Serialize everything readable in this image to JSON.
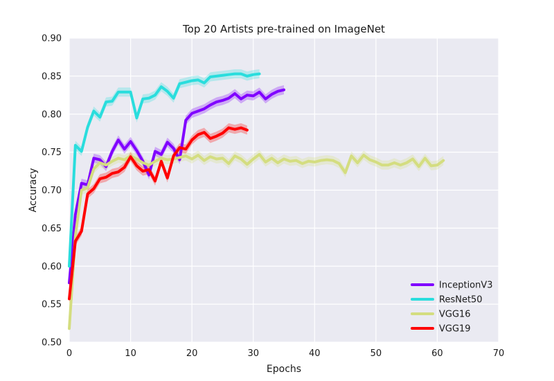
{
  "chart_data": {
    "type": "line",
    "title": "Top 20 Artists pre-trained on ImageNet",
    "xlabel": "Epochs",
    "ylabel": "Accuracy",
    "xlim": [
      0,
      70
    ],
    "ylim": [
      0.5,
      0.9
    ],
    "x_ticks": [
      "0",
      "10",
      "20",
      "30",
      "40",
      "50",
      "60",
      "70"
    ],
    "y_ticks": [
      "0.50",
      "0.55",
      "0.60",
      "0.65",
      "0.70",
      "0.75",
      "0.80",
      "0.85",
      "0.90"
    ],
    "grid": true,
    "legend_position": "bottom-right",
    "series": [
      {
        "name": "InceptionV3",
        "color": "#8000ff",
        "band": 0.006,
        "x": [
          0,
          1,
          2,
          3,
          4,
          5,
          6,
          7,
          8,
          9,
          10,
          11,
          12,
          13,
          14,
          15,
          16,
          17,
          18,
          19,
          20,
          21,
          22,
          23,
          24,
          25,
          26,
          27,
          28,
          29,
          30,
          31,
          32,
          33,
          34,
          35
        ],
        "values": [
          0.578,
          0.668,
          0.709,
          0.707,
          0.742,
          0.74,
          0.731,
          0.751,
          0.766,
          0.754,
          0.764,
          0.752,
          0.738,
          0.72,
          0.751,
          0.747,
          0.763,
          0.755,
          0.74,
          0.792,
          0.801,
          0.804,
          0.807,
          0.812,
          0.816,
          0.818,
          0.821,
          0.827,
          0.82,
          0.825,
          0.824,
          0.829,
          0.82,
          0.826,
          0.83,
          0.832
        ]
      },
      {
        "name": "ResNet50",
        "color": "#2adddd",
        "band": 0.006,
        "x": [
          0,
          1,
          2,
          3,
          4,
          5,
          6,
          7,
          8,
          9,
          10,
          11,
          12,
          13,
          14,
          15,
          16,
          17,
          18,
          19,
          20,
          21,
          22,
          23,
          24,
          25,
          26,
          27,
          28,
          29,
          30,
          31
        ],
        "values": [
          0.6,
          0.759,
          0.751,
          0.783,
          0.804,
          0.796,
          0.816,
          0.817,
          0.829,
          0.829,
          0.829,
          0.795,
          0.82,
          0.821,
          0.825,
          0.836,
          0.83,
          0.821,
          0.84,
          0.842,
          0.844,
          0.845,
          0.841,
          0.849,
          0.85,
          0.851,
          0.852,
          0.853,
          0.853,
          0.85,
          0.852,
          0.853
        ]
      },
      {
        "name": "VGG16",
        "color": "#d4dd80",
        "band": 0.006,
        "x": [
          0,
          1,
          2,
          3,
          4,
          5,
          6,
          7,
          8,
          9,
          10,
          11,
          12,
          13,
          14,
          15,
          16,
          17,
          18,
          19,
          20,
          21,
          22,
          23,
          24,
          25,
          26,
          27,
          28,
          29,
          30,
          31,
          32,
          33,
          34,
          35,
          36,
          37,
          38,
          39,
          40,
          41,
          42,
          43,
          44,
          45,
          46,
          47,
          48,
          49,
          50,
          51,
          52,
          53,
          54,
          55,
          56,
          57,
          58,
          59,
          60,
          61
        ],
        "values": [
          0.518,
          0.64,
          0.7,
          0.703,
          0.728,
          0.736,
          0.733,
          0.738,
          0.742,
          0.74,
          0.745,
          0.741,
          0.736,
          0.733,
          0.738,
          0.742,
          0.74,
          0.741,
          0.743,
          0.745,
          0.741,
          0.746,
          0.739,
          0.744,
          0.741,
          0.742,
          0.735,
          0.745,
          0.741,
          0.734,
          0.741,
          0.747,
          0.737,
          0.742,
          0.736,
          0.741,
          0.738,
          0.739,
          0.735,
          0.738,
          0.737,
          0.739,
          0.74,
          0.739,
          0.735,
          0.723,
          0.745,
          0.736,
          0.746,
          0.74,
          0.737,
          0.733,
          0.733,
          0.736,
          0.733,
          0.736,
          0.741,
          0.731,
          0.742,
          0.732,
          0.733,
          0.739
        ]
      },
      {
        "name": "VGG19",
        "color": "#ff0000",
        "band": 0.006,
        "x": [
          0,
          1,
          2,
          3,
          4,
          5,
          6,
          7,
          8,
          9,
          10,
          11,
          12,
          13,
          14,
          15,
          16,
          17,
          18,
          19,
          20,
          21,
          22,
          23,
          24,
          25,
          26,
          27,
          28,
          29
        ],
        "values": [
          0.557,
          0.633,
          0.646,
          0.695,
          0.702,
          0.715,
          0.717,
          0.722,
          0.724,
          0.73,
          0.744,
          0.732,
          0.725,
          0.727,
          0.712,
          0.738,
          0.716,
          0.745,
          0.756,
          0.754,
          0.766,
          0.773,
          0.776,
          0.768,
          0.771,
          0.775,
          0.782,
          0.78,
          0.782,
          0.779
        ]
      }
    ]
  }
}
